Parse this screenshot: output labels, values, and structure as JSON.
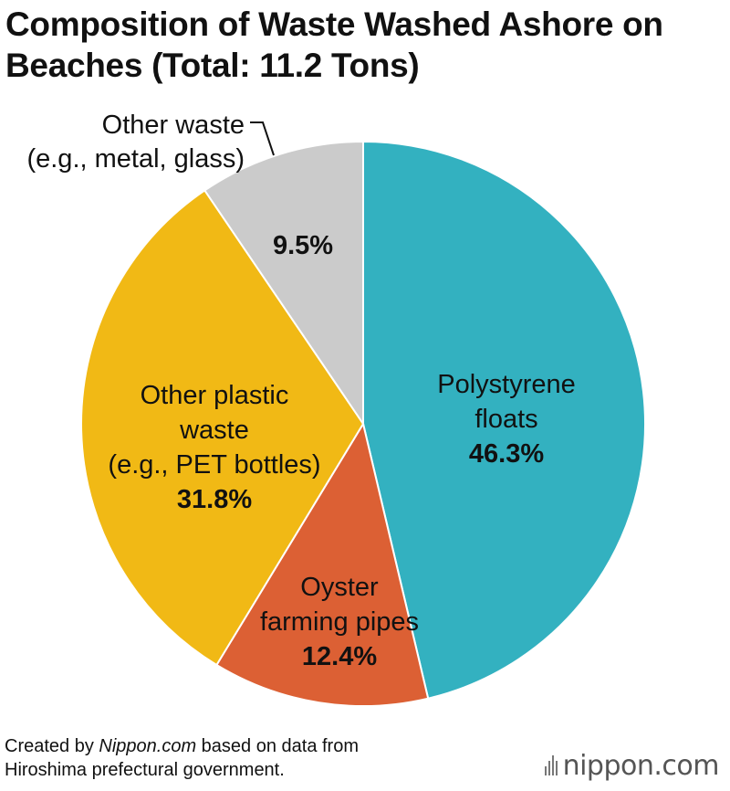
{
  "chart_data": {
    "type": "pie",
    "title_lines": [
      "Composition of Waste Washed Ashore on",
      "Beaches (Total: 11.2 Tons)"
    ],
    "slices": [
      {
        "label_lines": [
          "Polystyrene",
          "floats"
        ],
        "value": 46.3,
        "value_label": "46.3%",
        "color": "#33b1c0"
      },
      {
        "label_lines": [
          "Oyster",
          "farming pipes"
        ],
        "value": 12.4,
        "value_label": "12.4%",
        "color": "#dc6034"
      },
      {
        "label_lines": [
          "Other plastic",
          "waste",
          "(e.g., PET bottles)"
        ],
        "value": 31.8,
        "value_label": "31.8%",
        "color": "#f1b915"
      },
      {
        "label_lines": [
          "Other waste",
          "(e.g., metal, glass)"
        ],
        "value": 9.5,
        "value_label": "9.5%",
        "color": "#cbcbcb"
      }
    ],
    "start_angle": "12 o'clock",
    "direction": "clockwise",
    "legend": "none"
  },
  "footer": {
    "line1_prefix": "Created by ",
    "line1_source": "Nippon.com",
    "line1_suffix": " based on data from",
    "line2": "Hiroshima prefectural government."
  },
  "logo": {
    "text": "nippon.com"
  }
}
